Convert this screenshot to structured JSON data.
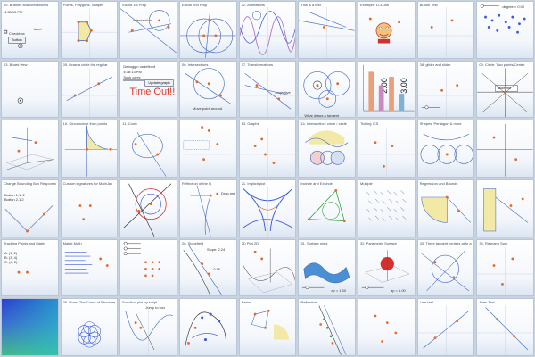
{
  "colors": {
    "point_orange": "#e06c2c",
    "point_blue": "#3b5bdb",
    "line_blue": "#4a6fbf",
    "curve_red": "#d33030",
    "fill_yellow": "#f3e9a6",
    "fill_green": "#cfe9c0",
    "timeout_red": "#e0382c",
    "tile_border": "#b9c6d8"
  },
  "tiles": [
    {
      "title": "00. Buttons and checkboxes",
      "texts": [
        "4:38:13 PM",
        "label",
        "Checkbox",
        "Button"
      ]
    },
    {
      "title": "Points, Polygons, Shapes",
      "texts": []
    },
    {
      "title": "Euclid 1st Prop",
      "texts": [
        "Intersection"
      ]
    },
    {
      "title": "Euclid 2nd Prop",
      "texts": []
    },
    {
      "title": "02. Animations",
      "texts": []
    },
    {
      "title": "This is a test",
      "texts": []
    },
    {
      "title": "Example: LCC-ish",
      "texts": []
    },
    {
      "title": "Button Test",
      "texts": []
    },
    {
      "title": "",
      "texts": [
        "degree = 0.00"
      ]
    },
    {
      "title": "03. Board view",
      "texts": []
    },
    {
      "title": "05. Draw a circle the regular",
      "texts": []
    },
    {
      "title": "",
      "texts": [
        "Debuggin undefined",
        "4:38:13 PM",
        "Suck carry:",
        "Update graph",
        "Time Out!!"
      ]
    },
    {
      "title": "06. Intersections",
      "texts": [
        "Move point around"
      ]
    },
    {
      "title": "07. Transformations",
      "texts": [
        "projective"
      ]
    },
    {
      "title": "",
      "texts": [
        "P",
        "What draws a tangent"
      ]
    },
    {
      "title": "",
      "texts": [
        "2.00",
        "3.00"
      ]
    },
    {
      "title": "08. glider and slider",
      "texts": []
    },
    {
      "title": "09. Circle: Two points/Center",
      "texts": [
        "slide me"
      ]
    },
    {
      "title": "",
      "texts": []
    },
    {
      "title": "10. Circumcircle from points",
      "texts": []
    },
    {
      "title": "11. Conic",
      "texts": []
    },
    {
      "title": "",
      "texts": []
    },
    {
      "title": "13. Graphs",
      "texts": []
    },
    {
      "title": "14. Intersection: circle / circle",
      "texts": []
    },
    {
      "title": "Ticking ICS",
      "texts": []
    },
    {
      "title": "Shapes: Pentagon & more",
      "texts": []
    },
    {
      "title": "",
      "texts": []
    },
    {
      "title": "Change Bounding Box Responsive",
      "texts": [
        "Button 1,1, 2",
        "Button 2,1 2"
      ]
    },
    {
      "title": "Custom signatures for MathJax",
      "texts": []
    },
    {
      "title": "",
      "texts": []
    },
    {
      "title": "Reflection of the Q",
      "texts": [
        "Drag me"
      ]
    },
    {
      "title": "21. Implicit plot",
      "texts": []
    },
    {
      "title": "Incircle and Excircle",
      "texts": []
    },
    {
      "title": "Multiple",
      "texts": []
    },
    {
      "title": "Regression and Bounds",
      "texts": []
    },
    {
      "title": "",
      "texts": []
    },
    {
      "title": "Tracking Points and Matrix",
      "texts": [
        "A: (1, 2)",
        "B: (3, 4)",
        "C: (4, 2)"
      ]
    },
    {
      "title": "Matrix Math",
      "texts": []
    },
    {
      "title": "",
      "texts": []
    },
    {
      "title": "26. Slopefield",
      "texts": [
        "Slope: 2.24",
        "-0.56"
      ]
    },
    {
      "title": "3D Plot 2D",
      "texts": []
    },
    {
      "title": "31. Surface plots",
      "texts": [
        "ap = 1.00"
      ]
    },
    {
      "title": "32. Parametric Surface",
      "texts": [
        "ap = 1.00"
      ]
    },
    {
      "title": "33. Three tangent centers at to a line",
      "texts": []
    },
    {
      "title": "34. Riemann Sum",
      "texts": []
    },
    {
      "title": "",
      "texts": []
    },
    {
      "title": "35. Rose: The Curve of Rhodonea",
      "texts": []
    },
    {
      "title": "Function plot by script",
      "texts": [
        "Jump to box"
      ]
    },
    {
      "title": "",
      "texts": []
    },
    {
      "title": "Bezier",
      "texts": []
    },
    {
      "title": "Reflection",
      "texts": []
    },
    {
      "title": "",
      "texts": []
    },
    {
      "title": "Line test",
      "texts": []
    },
    {
      "title": "Axes Test",
      "texts": []
    }
  ]
}
